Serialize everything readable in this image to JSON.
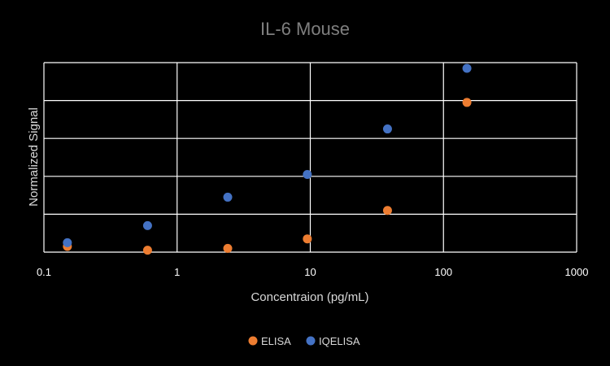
{
  "chart_data": {
    "type": "scatter",
    "title": "IL-6 Mouse",
    "xlabel": "Concentraion (pg/mL)",
    "ylabel": "Normalized Signal",
    "x_scale": "log",
    "xlim": [
      0.1,
      1000
    ],
    "x_ticks": [
      "0.1",
      "1",
      "10",
      "100",
      "1000"
    ],
    "ylim": [
      0,
      1
    ],
    "y_gridlines": 5,
    "y_tick_labels_shown": false,
    "grid": true,
    "legend_position": "bottom",
    "series": [
      {
        "name": "ELISA",
        "color": "#ED7D31",
        "x": [
          0.15,
          0.6,
          2.4,
          9.5,
          38,
          150
        ],
        "y": [
          0.03,
          0.01,
          0.02,
          0.07,
          0.22,
          0.79
        ]
      },
      {
        "name": "IQELISA",
        "color": "#4472C4",
        "x": [
          0.15,
          0.6,
          2.4,
          9.5,
          38,
          150
        ],
        "y": [
          0.05,
          0.14,
          0.29,
          0.41,
          0.65,
          0.97
        ]
      }
    ]
  }
}
